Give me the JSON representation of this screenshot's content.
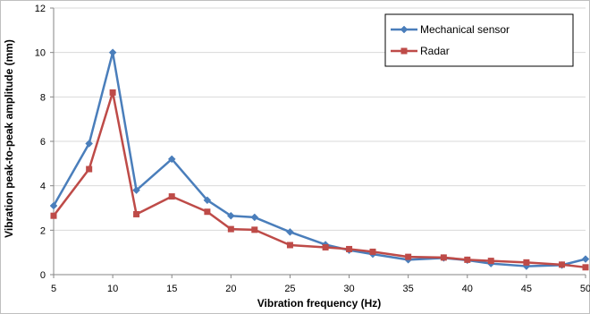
{
  "chart_data": {
    "type": "line",
    "title": "",
    "xlabel": "Vibration frequency (Hz)",
    "ylabel": "Vibration peak-to-peak amplitude (mm)",
    "xlim": [
      5,
      50
    ],
    "ylim": [
      0,
      12
    ],
    "x_ticks": [
      "5",
      "10",
      "15",
      "20",
      "25",
      "30",
      "35",
      "40",
      "45",
      "50"
    ],
    "y_ticks": [
      "0",
      "2",
      "4",
      "6",
      "8",
      "10",
      "12"
    ],
    "grid": "horizontal",
    "legend_position": "top-right",
    "series": [
      {
        "name": "Mechanical sensor",
        "color": "#4a7ebb",
        "marker": "diamond",
        "x": [
          5,
          8,
          10,
          12,
          15,
          18,
          20,
          22,
          25,
          28,
          30,
          32,
          35,
          38,
          40,
          42,
          45,
          48,
          50
        ],
        "y": [
          3.1,
          5.9,
          10.0,
          3.8,
          5.2,
          3.35,
          2.65,
          2.58,
          1.92,
          1.35,
          1.1,
          0.92,
          0.67,
          0.75,
          0.65,
          0.5,
          0.38,
          0.43,
          0.7
        ]
      },
      {
        "name": "Radar",
        "color": "#be4b48",
        "marker": "square",
        "x": [
          5,
          8,
          10,
          12,
          15,
          18,
          20,
          22,
          25,
          28,
          30,
          32,
          35,
          38,
          40,
          42,
          45,
          48,
          50
        ],
        "y": [
          2.65,
          4.75,
          8.2,
          2.72,
          3.52,
          2.83,
          2.05,
          2.02,
          1.33,
          1.23,
          1.15,
          1.03,
          0.8,
          0.77,
          0.67,
          0.62,
          0.55,
          0.45,
          0.33
        ]
      }
    ]
  }
}
